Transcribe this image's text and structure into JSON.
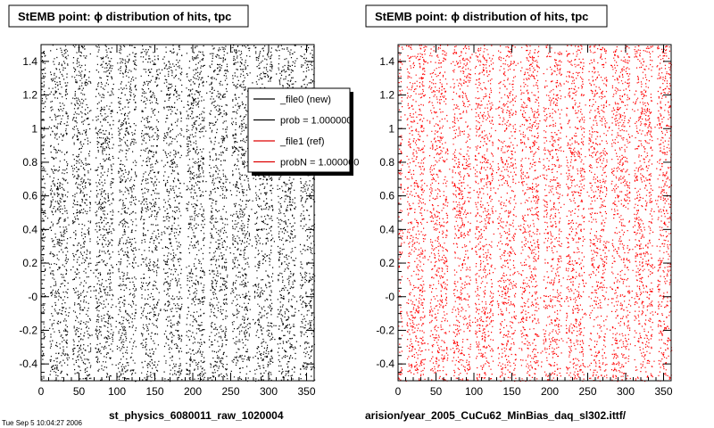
{
  "stamp": "Tue Sep 5 10:04:27 2006",
  "legend": {
    "entries": [
      {
        "label": "_file0 (new)",
        "color": "#000000"
      },
      {
        "label": "prob = 1.000000",
        "color": "#000000"
      },
      {
        "label": "_file1 (ref)",
        "color": "#dd0000"
      },
      {
        "label": "probN = 1.000000",
        "color": "#dd0000"
      }
    ]
  },
  "chart_data": [
    {
      "type": "scatter",
      "title": "StEMB point:  ϕ distribution of hits, tpc",
      "footer": "st_physics_6080011_raw_1020004",
      "marker_color": "#000000",
      "xlim": [
        0,
        360
      ],
      "ylim": [
        -0.5,
        1.5
      ],
      "x_ticks": [
        0,
        50,
        100,
        150,
        200,
        250,
        300,
        350
      ],
      "y_ticks": [
        -0.4,
        -0.2,
        0,
        0.2,
        0.4,
        0.6,
        0.8,
        1,
        1.2,
        1.4
      ],
      "x_tick_labels": [
        "0",
        "50",
        "100",
        "150",
        "200",
        "250",
        "300",
        "350"
      ],
      "y_tick_labels": [
        "-0.4",
        "-0.2",
        "-0",
        "0.2",
        "0.4",
        "0.6",
        "0.8",
        "1",
        "1.2",
        "1.4"
      ],
      "sector_period_deg": 30,
      "num_sector_gaps": 12
    },
    {
      "type": "scatter",
      "title": "StEMB point:  ϕ distribution of hits, tpc",
      "footer": "arision/year_2005_CuCu62_MinBias_daq_sl302.ittf/",
      "marker_color": "#ff0000",
      "xlim": [
        0,
        360
      ],
      "ylim": [
        -0.5,
        1.5
      ],
      "x_ticks": [
        0,
        50,
        100,
        150,
        200,
        250,
        300,
        350
      ],
      "y_ticks": [
        -0.4,
        -0.2,
        0,
        0.2,
        0.4,
        0.6,
        0.8,
        1,
        1.2,
        1.4
      ],
      "x_tick_labels": [
        "0",
        "50",
        "100",
        "150",
        "200",
        "250",
        "300",
        "350"
      ],
      "y_tick_labels": [
        "-0.4",
        "-0.2",
        "-0",
        "0.2",
        "0.4",
        "0.6",
        "0.8",
        "1",
        "1.2",
        "1.4"
      ],
      "sector_period_deg": 30,
      "num_sector_gaps": 12
    }
  ]
}
